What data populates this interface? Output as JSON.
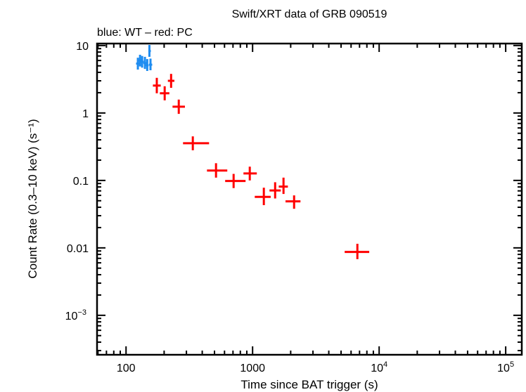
{
  "chart_data": {
    "type": "scatter",
    "title": "Swift/XRT data of GRB 090519",
    "subtitle": "blue: WT – red: PC",
    "xlabel": "Time since BAT trigger (s)",
    "ylabel": "Count Rate (0.3–10 keV) (s⁻¹)",
    "xscale": "log",
    "yscale": "log",
    "xlim": [
      59,
      134000
    ],
    "ylim": [
      0.00026,
      10.7
    ],
    "grid": false,
    "x_ticks": [
      {
        "value": 100,
        "label": "100"
      },
      {
        "value": 1000,
        "label": "1000"
      },
      {
        "value": 10000,
        "label": "10",
        "exp": "4"
      },
      {
        "value": 100000,
        "label": "10",
        "exp": "5"
      }
    ],
    "y_ticks": [
      {
        "value": 10,
        "label": "10"
      },
      {
        "value": 1,
        "label": "1"
      },
      {
        "value": 0.1,
        "label": "0.1"
      },
      {
        "value": 0.01,
        "label": "0.01"
      },
      {
        "value": 0.001,
        "label": "10",
        "exp": "−3"
      }
    ],
    "series": [
      {
        "name": "WT",
        "color": "#1e8cf0",
        "points": [
          {
            "x": 124,
            "xlo": 120,
            "xhi": 128,
            "y": 5.4,
            "ylo": 4.4,
            "yhi": 6.6
          },
          {
            "x": 129,
            "xlo": 125,
            "xhi": 133,
            "y": 6.0,
            "ylo": 4.9,
            "yhi": 7.3
          },
          {
            "x": 134,
            "xlo": 130,
            "xhi": 138,
            "y": 5.75,
            "ylo": 4.7,
            "yhi": 7.0
          },
          {
            "x": 141,
            "xlo": 137,
            "xhi": 145,
            "y": 5.5,
            "ylo": 4.5,
            "yhi": 6.8
          },
          {
            "x": 147,
            "xlo": 143,
            "xhi": 151,
            "y": 5.1,
            "ylo": 4.2,
            "yhi": 6.3
          },
          {
            "x": 153,
            "xlo": 150,
            "xhi": 157,
            "y": 8.3,
            "ylo": 6.8,
            "yhi": 10.2
          },
          {
            "x": 156,
            "xlo": 152,
            "xhi": 161,
            "y": 5.2,
            "ylo": 4.3,
            "yhi": 6.4
          }
        ]
      },
      {
        "name": "PC",
        "color": "#ff0000",
        "points": [
          {
            "x": 175,
            "xlo": 163,
            "xhi": 188,
            "y": 2.55,
            "ylo": 1.96,
            "yhi": 3.32
          },
          {
            "x": 202,
            "xlo": 185,
            "xhi": 220,
            "y": 1.96,
            "ylo": 1.54,
            "yhi": 2.49
          },
          {
            "x": 227,
            "xlo": 214,
            "xhi": 241,
            "y": 3.0,
            "ylo": 2.36,
            "yhi": 3.8
          },
          {
            "x": 261,
            "xlo": 233,
            "xhi": 292,
            "y": 1.24,
            "ylo": 0.97,
            "yhi": 1.58
          },
          {
            "x": 337,
            "xlo": 282,
            "xhi": 453,
            "y": 0.356,
            "ylo": 0.28,
            "yhi": 0.45
          },
          {
            "x": 514,
            "xlo": 436,
            "xhi": 631,
            "y": 0.14,
            "ylo": 0.11,
            "yhi": 0.18
          },
          {
            "x": 708,
            "xlo": 607,
            "xhi": 880,
            "y": 0.098,
            "ylo": 0.077,
            "yhi": 0.125
          },
          {
            "x": 950,
            "xlo": 847,
            "xhi": 1080,
            "y": 0.127,
            "ylo": 0.1,
            "yhi": 0.16
          },
          {
            "x": 1227,
            "xlo": 1040,
            "xhi": 1390,
            "y": 0.057,
            "ylo": 0.043,
            "yhi": 0.078
          },
          {
            "x": 1507,
            "xlo": 1360,
            "xhi": 1670,
            "y": 0.071,
            "ylo": 0.054,
            "yhi": 0.094
          },
          {
            "x": 1755,
            "xlo": 1610,
            "xhi": 1900,
            "y": 0.081,
            "ylo": 0.063,
            "yhi": 0.11
          },
          {
            "x": 2128,
            "xlo": 1820,
            "xhi": 2390,
            "y": 0.049,
            "ylo": 0.038,
            "yhi": 0.06
          },
          {
            "x": 6730,
            "xlo": 5340,
            "xhi": 8350,
            "y": 0.0087,
            "ylo": 0.0068,
            "yhi": 0.0115
          }
        ]
      }
    ]
  }
}
